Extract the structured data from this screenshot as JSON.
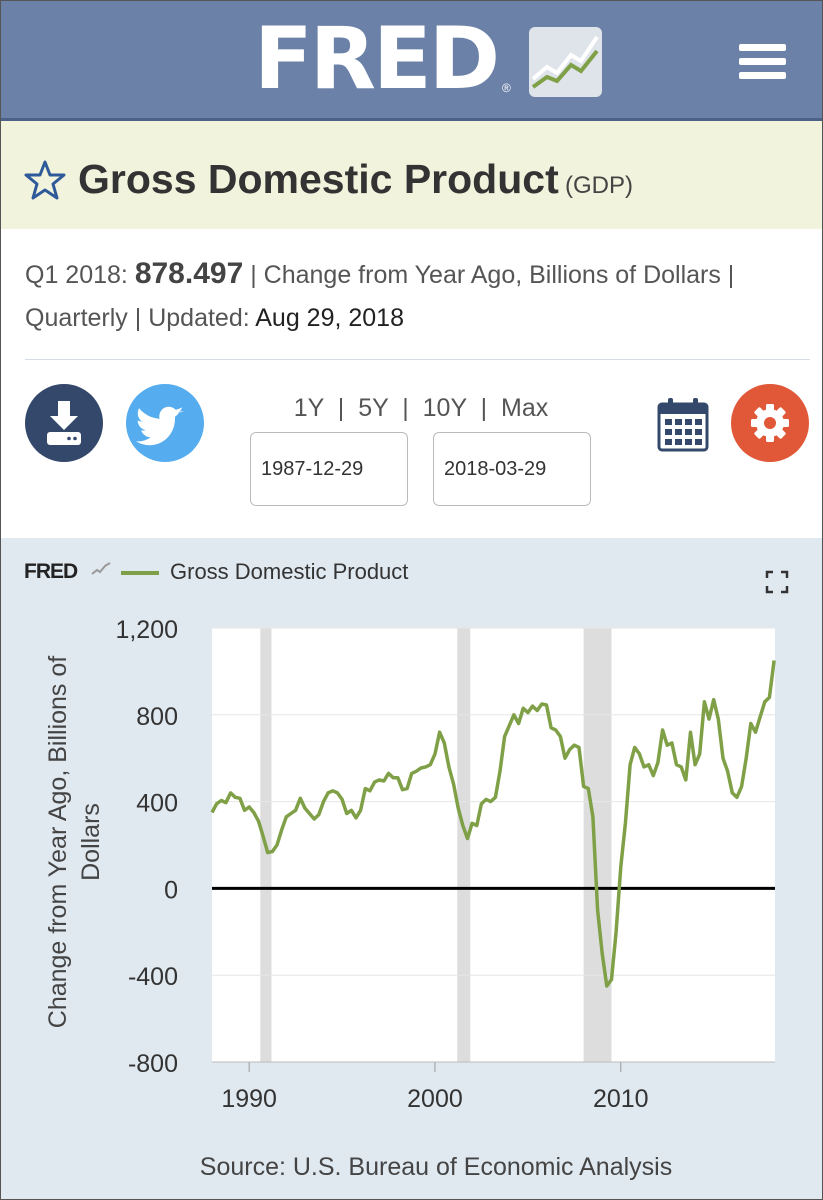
{
  "header": {
    "logo_text": "FRED",
    "logo_reg": "®",
    "menu_icon": "hamburger-menu-icon"
  },
  "series": {
    "title": "Gross Domestic Product",
    "id": "(GDP)",
    "period": "Q1 2018:",
    "value": "878.497",
    "units_text": "| Change from Year Ago, Billions of Dollars |",
    "frequency": "Quarterly",
    "updated_label": "| Updated:",
    "updated_date": "Aug 29, 2018"
  },
  "controls": {
    "range_1y": "1Y",
    "range_5y": "5Y",
    "range_10y": "10Y",
    "range_max": "Max",
    "sep": "|",
    "start_date": "1987-12-29",
    "end_date": "2018-03-29",
    "icons": [
      "download-icon",
      "twitter-icon",
      "calendar-icon",
      "gear-icon"
    ]
  },
  "chart_header": {
    "mini_logo": "FRED",
    "legend_label": "Gross Domestic Product"
  },
  "colors": {
    "line": "#7fa047",
    "header": "#6b81a7",
    "recession": "#dddddd",
    "zero_line": "#000000"
  },
  "chart_data": {
    "type": "line",
    "ylabel": "Change from Year Ago, Billions of Dollars",
    "xlabel": "",
    "ylim": [
      -800,
      1200
    ],
    "yticks": [
      -800,
      -400,
      0,
      400,
      800,
      1200
    ],
    "ytick_labels": [
      "-800",
      "-400",
      "0",
      "400",
      "800",
      "1,200"
    ],
    "xlim": [
      1988,
      2018.3
    ],
    "xticks": [
      1990,
      2000,
      2010
    ],
    "xtick_labels": [
      "1990",
      "2000",
      "2010"
    ],
    "recessions": [
      [
        1990.6,
        1991.2
      ],
      [
        2001.2,
        2001.9
      ],
      [
        2008.0,
        2009.5
      ]
    ],
    "zero_line": true,
    "series": [
      {
        "name": "Gross Domestic Product",
        "x": [
          1988.0,
          1988.25,
          1988.5,
          1988.75,
          1989.0,
          1989.25,
          1989.5,
          1989.75,
          1990.0,
          1990.25,
          1990.5,
          1990.75,
          1991.0,
          1991.25,
          1991.5,
          1991.75,
          1992.0,
          1992.25,
          1992.5,
          1992.75,
          1993.0,
          1993.25,
          1993.5,
          1993.75,
          1994.0,
          1994.25,
          1994.5,
          1994.75,
          1995.0,
          1995.25,
          1995.5,
          1995.75,
          1996.0,
          1996.25,
          1996.5,
          1996.75,
          1997.0,
          1997.25,
          1997.5,
          1997.75,
          1998.0,
          1998.25,
          1998.5,
          1998.75,
          1999.0,
          1999.25,
          1999.5,
          1999.75,
          2000.0,
          2000.25,
          2000.5,
          2000.75,
          2001.0,
          2001.25,
          2001.5,
          2001.75,
          2002.0,
          2002.25,
          2002.5,
          2002.75,
          2003.0,
          2003.25,
          2003.5,
          2003.75,
          2004.0,
          2004.25,
          2004.5,
          2004.75,
          2005.0,
          2005.25,
          2005.5,
          2005.75,
          2006.0,
          2006.25,
          2006.5,
          2006.75,
          2007.0,
          2007.25,
          2007.5,
          2007.75,
          2008.0,
          2008.25,
          2008.5,
          2008.75,
          2009.0,
          2009.25,
          2009.5,
          2009.75,
          2010.0,
          2010.25,
          2010.5,
          2010.75,
          2011.0,
          2011.25,
          2011.5,
          2011.75,
          2012.0,
          2012.25,
          2012.5,
          2012.75,
          2013.0,
          2013.25,
          2013.5,
          2013.75,
          2014.0,
          2014.25,
          2014.5,
          2014.75,
          2015.0,
          2015.25,
          2015.5,
          2015.75,
          2016.0,
          2016.25,
          2016.5,
          2016.75,
          2017.0,
          2017.25,
          2017.5,
          2017.75,
          2018.0,
          2018.25
        ],
        "y": [
          350,
          390,
          405,
          395,
          440,
          420,
          415,
          360,
          375,
          350,
          310,
          240,
          165,
          170,
          200,
          270,
          330,
          345,
          360,
          415,
          370,
          345,
          320,
          340,
          400,
          440,
          450,
          440,
          410,
          345,
          360,
          325,
          360,
          460,
          450,
          490,
          500,
          495,
          530,
          510,
          510,
          455,
          460,
          530,
          540,
          555,
          560,
          570,
          620,
          720,
          670,
          560,
          480,
          370,
          290,
          230,
          300,
          290,
          390,
          410,
          400,
          420,
          540,
          700,
          750,
          800,
          760,
          830,
          810,
          840,
          820,
          850,
          845,
          740,
          730,
          700,
          600,
          640,
          660,
          650,
          470,
          460,
          330,
          -100,
          -300,
          -450,
          -420,
          -200,
          100,
          300,
          570,
          650,
          620,
          560,
          570,
          520,
          580,
          730,
          660,
          670,
          570,
          560,
          500,
          720,
          570,
          620,
          860,
          780,
          870,
          780,
          600,
          540,
          440,
          420,
          470,
          600,
          760,
          720,
          790,
          860,
          880,
          1050
        ]
      }
    ]
  },
  "source": "Source: U.S. Bureau of Economic Analysis"
}
